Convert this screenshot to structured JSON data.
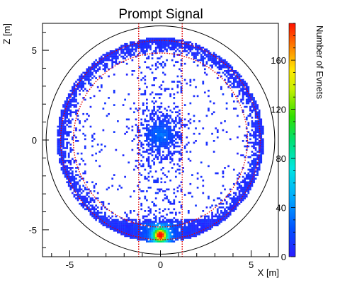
{
  "chart_data": {
    "type": "heatmap",
    "title": "Prompt Signal",
    "xlabel": "X [m]",
    "ylabel": "Z [m]",
    "zlabel": "Number of Evnets",
    "xlim": [
      -6.5,
      6.5
    ],
    "ylim": [
      -6.5,
      6.5
    ],
    "zlim": [
      0,
      190
    ],
    "x_ticks": [
      -5,
      0,
      5
    ],
    "x_tick_labels": [
      "-5",
      "0",
      "5"
    ],
    "y_ticks": [
      -5,
      0,
      5
    ],
    "y_tick_labels": [
      "-5",
      "0",
      "5"
    ],
    "z_ticks": [
      0,
      40,
      80,
      120,
      160
    ],
    "z_tick_labels": [
      "0",
      "40",
      "80",
      "120",
      "160"
    ],
    "outer_circle_radius": 6.3,
    "outer_circle_color": "#000000",
    "cut_lines": {
      "color": "#e00000",
      "style": "dotted",
      "inner_circle_radius": 4.8,
      "mid_circle_radius": 5.5,
      "vertical_x": [
        -1.2,
        1.2
      ]
    },
    "distribution": {
      "shell_radius": 5.55,
      "shell_thickness": 1.2,
      "central_blob": {
        "x": 0,
        "z": 0.3,
        "radius": 1.0
      },
      "bottom_hotspot": {
        "x": 0,
        "z": -5.3,
        "peak": 185
      }
    },
    "grid": false,
    "colorbar_position": "right"
  }
}
